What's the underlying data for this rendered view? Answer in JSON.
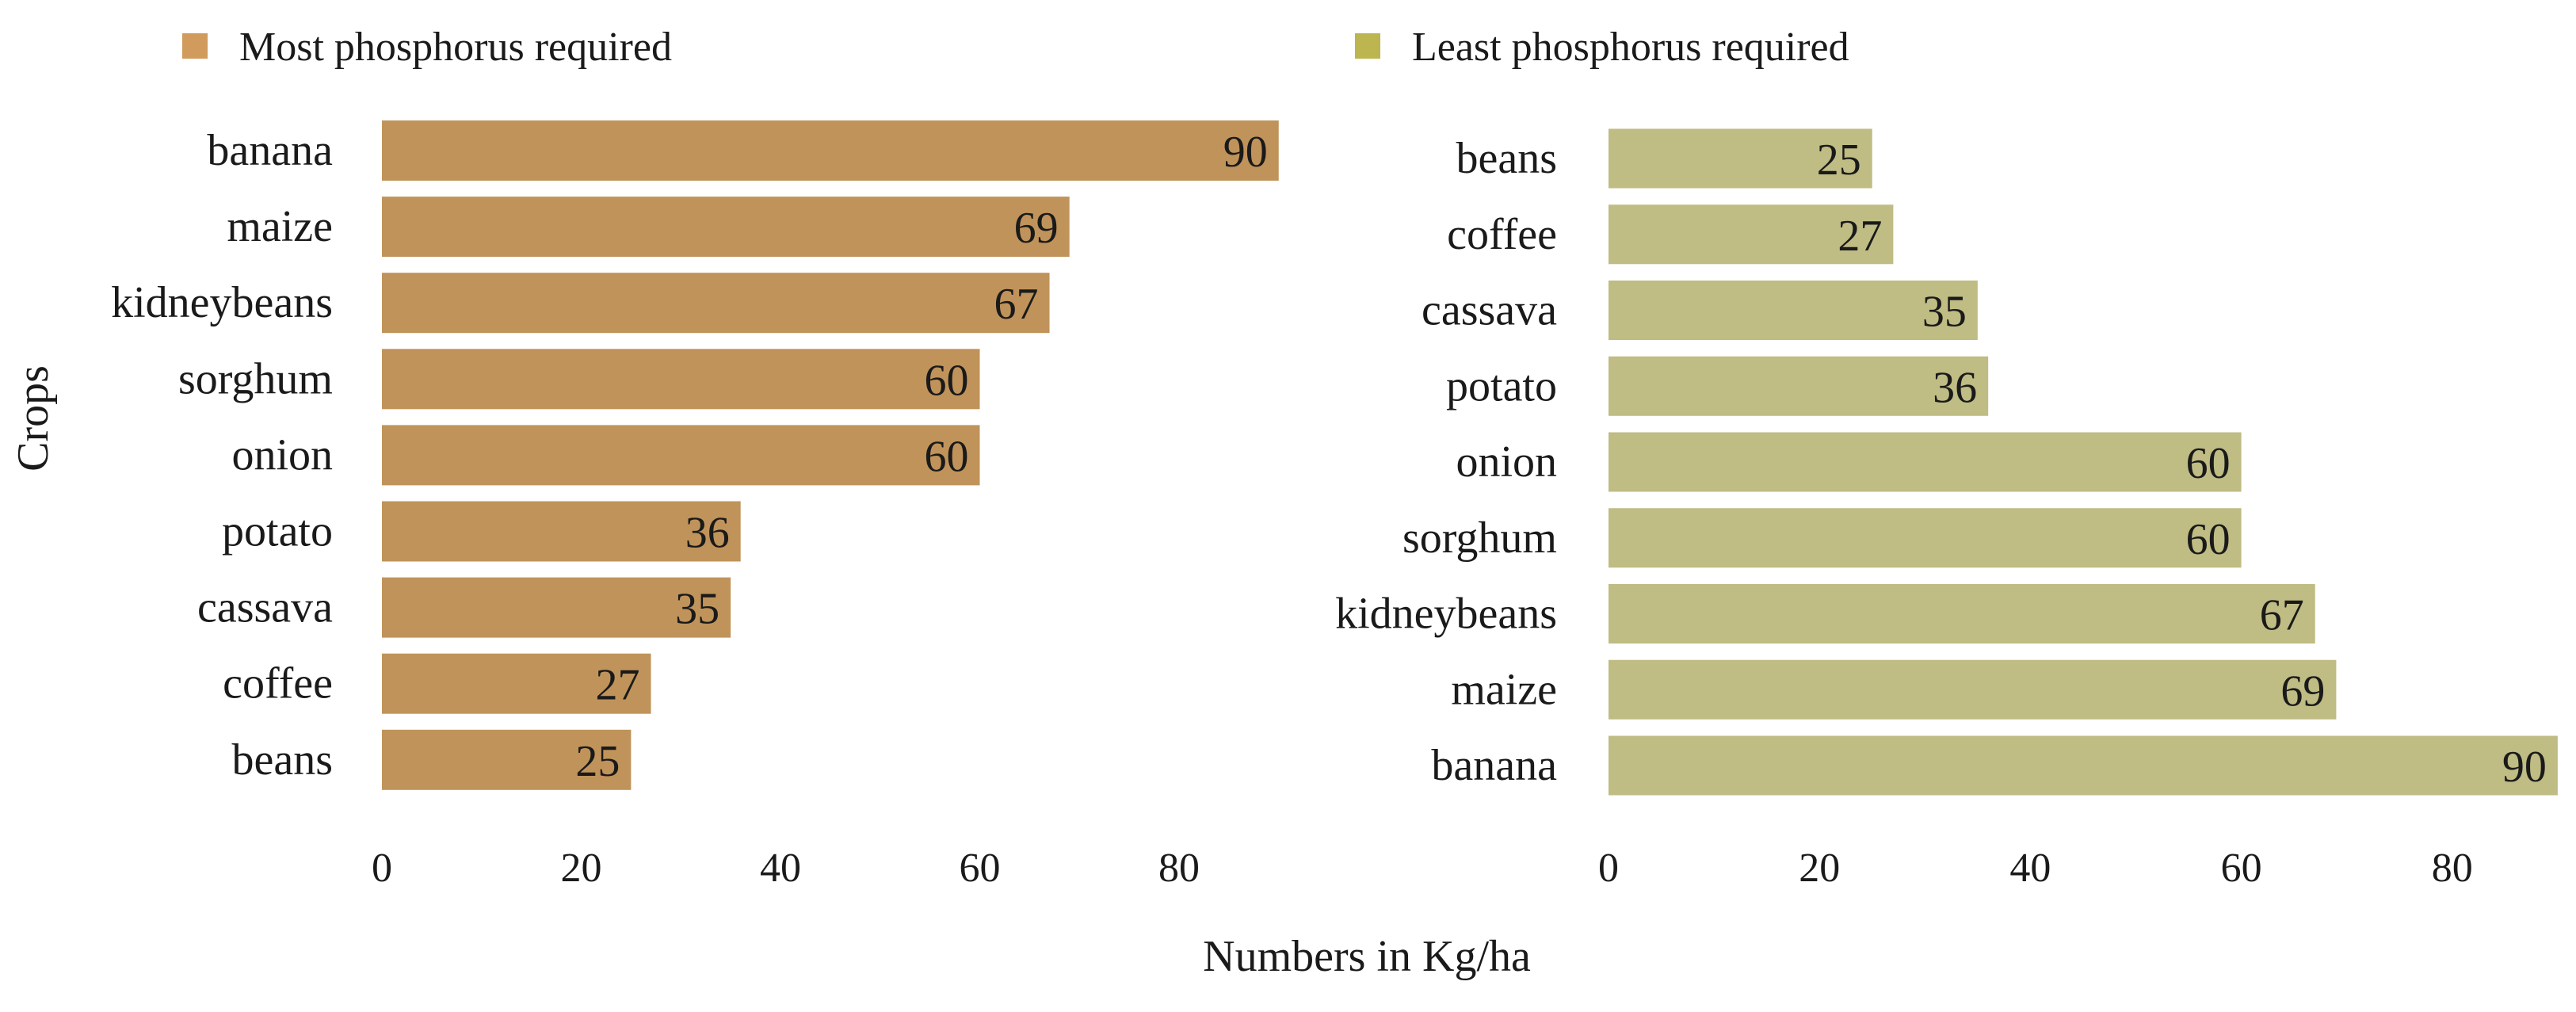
{
  "chart_data": [
    {
      "type": "bar",
      "orientation": "horizontal",
      "legend_label": "Most phosphorus required",
      "color": "#C0935A",
      "legend_color": "#D09B5C",
      "categories": [
        "banana",
        "maize",
        "kidneybeans",
        "sorghum",
        "onion",
        "potato",
        "cassava",
        "coffee",
        "beans"
      ],
      "values": [
        90,
        69,
        67,
        60,
        60,
        36,
        35,
        27,
        25
      ],
      "data_labels": [
        "90",
        "69",
        "67",
        "60",
        "60",
        "36",
        "35",
        "27",
        "25"
      ],
      "xlim": [
        0,
        90
      ],
      "xticks": [
        0,
        20,
        40,
        60,
        80
      ],
      "xtick_labels": [
        "0",
        "20",
        "40",
        "60",
        "80"
      ],
      "ylabel": "Crops",
      "grid": false
    },
    {
      "type": "bar",
      "orientation": "horizontal",
      "legend_label": "Least phosphorus required",
      "color": "#BFBC84",
      "legend_color": "#BDB54F",
      "categories": [
        "beans",
        "coffee",
        "cassava",
        "potato",
        "onion",
        "sorghum",
        "kidneybeans",
        "maize",
        "banana"
      ],
      "values": [
        25,
        27,
        35,
        36,
        60,
        60,
        67,
        69,
        90
      ],
      "data_labels": [
        "25",
        "27",
        "35",
        "36",
        "60",
        "60",
        "67",
        "69",
        "90"
      ],
      "xlim": [
        0,
        90
      ],
      "xticks": [
        0,
        20,
        40,
        60,
        80
      ],
      "xtick_labels": [
        "0",
        "20",
        "40",
        "60",
        "80"
      ],
      "grid": false
    }
  ],
  "shared_xlabel": "Numbers in Kg/ha"
}
